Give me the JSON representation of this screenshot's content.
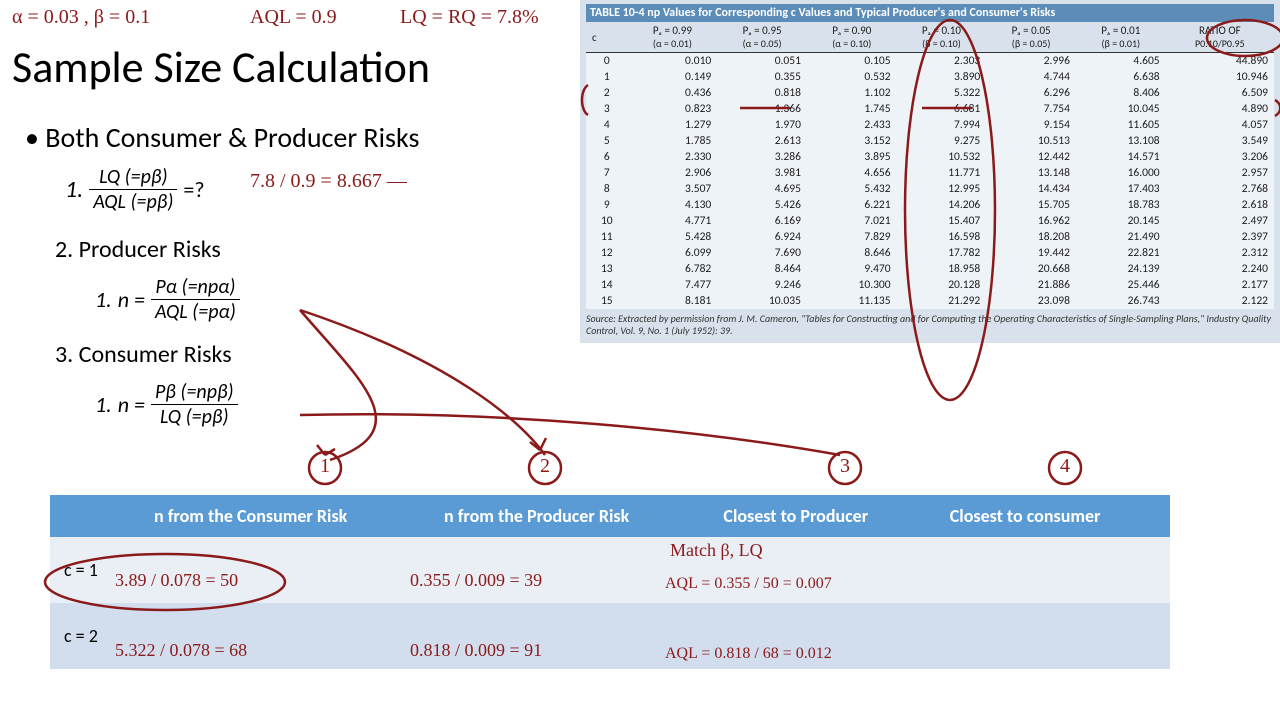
{
  "title": "Sample Size Calculation",
  "bullet_main": "Both Consumer & Producer Risks",
  "step1_label": "1.",
  "step1_frac_num": "LQ (=pβ)",
  "step1_frac_den": "AQL (=pβ)",
  "step1_suffix": "=?",
  "step2_label": "2.   Producer Risks",
  "step2a_label": "1.",
  "step2a_prefix": "n =",
  "step2a_num": "Pα (=npα)",
  "step2a_den": "AQL (=pα)",
  "step3_label": "3.   Consumer Risks",
  "step3a_label": "1.",
  "step3a_prefix": "n =",
  "step3a_num": "Pβ (=npβ)",
  "step3a_den": "LQ (=pβ)",
  "np_table": {
    "title": "TABLE 10-4   np Values for Corresponding c Values and Typical Producer's and Consumer's Risks",
    "headers": [
      {
        "top": "c",
        "sub": ""
      },
      {
        "top": "Pₐ = 0.99",
        "sub": "(α = 0.01)"
      },
      {
        "top": "Pₐ = 0.95",
        "sub": "(α = 0.05)"
      },
      {
        "top": "Pₐ = 0.90",
        "sub": "(α = 0.10)"
      },
      {
        "top": "Pₐ = 0.10",
        "sub": "(β = 0.10)"
      },
      {
        "top": "Pₐ = 0.05",
        "sub": "(β = 0.05)"
      },
      {
        "top": "Pₐ = 0.01",
        "sub": "(β = 0.01)"
      },
      {
        "top": "RATIO OF",
        "sub": "P0.10/P0.95"
      }
    ],
    "rows": [
      [
        "0",
        "0.010",
        "0.051",
        "0.105",
        "2.303",
        "2.996",
        "4.605",
        "44.890"
      ],
      [
        "1",
        "0.149",
        "0.355",
        "0.532",
        "3.890",
        "4.744",
        "6.638",
        "10.946"
      ],
      [
        "2",
        "0.436",
        "0.818",
        "1.102",
        "5.322",
        "6.296",
        "8.406",
        "6.509"
      ],
      [
        "3",
        "0.823",
        "1.366",
        "1.745",
        "6.681",
        "7.754",
        "10.045",
        "4.890"
      ],
      [
        "4",
        "1.279",
        "1.970",
        "2.433",
        "7.994",
        "9.154",
        "11.605",
        "4.057"
      ],
      [
        "5",
        "1.785",
        "2.613",
        "3.152",
        "9.275",
        "10.513",
        "13.108",
        "3.549"
      ],
      [
        "6",
        "2.330",
        "3.286",
        "3.895",
        "10.532",
        "12.442",
        "14.571",
        "3.206"
      ],
      [
        "7",
        "2.906",
        "3.981",
        "4.656",
        "11.771",
        "13.148",
        "16.000",
        "2.957"
      ],
      [
        "8",
        "3.507",
        "4.695",
        "5.432",
        "12.995",
        "14.434",
        "17.403",
        "2.768"
      ],
      [
        "9",
        "4.130",
        "5.426",
        "6.221",
        "14.206",
        "15.705",
        "18.783",
        "2.618"
      ],
      [
        "10",
        "4.771",
        "6.169",
        "7.021",
        "15.407",
        "16.962",
        "20.145",
        "2.497"
      ],
      [
        "11",
        "5.428",
        "6.924",
        "7.829",
        "16.598",
        "18.208",
        "21.490",
        "2.397"
      ],
      [
        "12",
        "6.099",
        "7.690",
        "8.646",
        "17.782",
        "19.442",
        "22.821",
        "2.312"
      ],
      [
        "13",
        "6.782",
        "8.464",
        "9.470",
        "18.958",
        "20.668",
        "24.139",
        "2.240"
      ],
      [
        "14",
        "7.477",
        "9.246",
        "10.300",
        "20.128",
        "21.886",
        "25.446",
        "2.177"
      ],
      [
        "15",
        "8.181",
        "10.035",
        "11.135",
        "21.292",
        "23.098",
        "26.743",
        "2.122"
      ]
    ],
    "source": "Source: Extracted by permission from J. M. Cameron, \"Tables for Constructing and for Computing the Operating Characteristics of Single-Sampling Plans,\" Industry Quality Control, Vol. 9, No. 1 (July 1952): 39."
  },
  "res_table": {
    "headers": [
      "",
      "n from the Consumer Risk",
      "n from the Producer Risk",
      "Closest to Producer",
      "Closest to consumer"
    ],
    "row1_label": "c = 1",
    "row2_label": "c = 2"
  },
  "handwriting": {
    "top1": "α = 0.03 ,  β = 0.1",
    "top2": "AQL = 0.9",
    "top3": "LQ = RQ = 7.8%",
    "frac_calc": "7.8 / 0.9 = 8.667 —",
    "col_labels": [
      "1",
      "2",
      "3",
      "4"
    ],
    "match_note": "Match β, LQ",
    "c1_consumer": "3.89 / 0.078 = 50",
    "c1_producer": "0.355 / 0.009 = 39",
    "c1_closest": "AQL = 0.355 / 50 = 0.007",
    "c2_consumer": "5.322 / 0.078 = 68",
    "c2_producer": "0.818 / 0.009 = 91",
    "c2_closest": "AQL = 0.818 / 68 = 0.012"
  },
  "colors": {
    "handwriting": "#8b1a1a",
    "table_header": "#5b9bd5",
    "np_bg": "#d9e2ec"
  }
}
